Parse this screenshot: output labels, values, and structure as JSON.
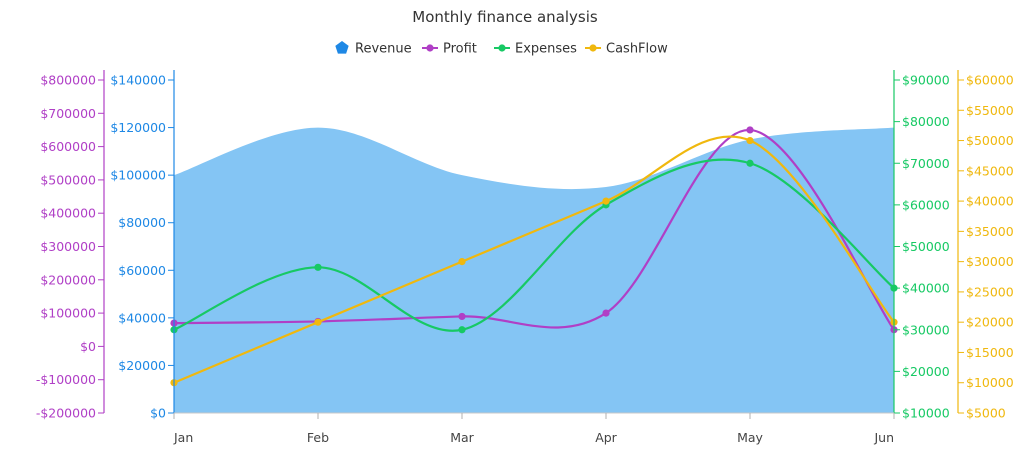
{
  "chart_data": {
    "type": "line",
    "title": "Monthly finance analysis",
    "categories": [
      "Jan",
      "Feb",
      "Mar",
      "Apr",
      "May",
      "Jun"
    ],
    "legend_position": "top-center",
    "grid": false,
    "axes": {
      "revenue": {
        "min": 0,
        "max": 140000,
        "step": 20000,
        "prefix": "$",
        "color": "#1e88e5"
      },
      "profit": {
        "min": -200000,
        "max": 800000,
        "step": 100000,
        "prefix": "$",
        "color": "#b03fc6"
      },
      "expenses": {
        "min": 10000,
        "max": 90000,
        "step": 10000,
        "prefix": "$",
        "color": "#17c964"
      },
      "cashflow": {
        "min": 5000,
        "max": 60000,
        "step": 5000,
        "prefix": "$",
        "color": "#f0b80e"
      }
    },
    "series": [
      {
        "name": "Revenue",
        "type": "area",
        "axis": "revenue",
        "color": "#84c5f4",
        "values": [
          100000,
          120000,
          100000,
          95000,
          115000,
          120000
        ]
      },
      {
        "name": "Profit",
        "type": "line",
        "axis": "profit",
        "color": "#b03fc6",
        "values": [
          70000,
          75000,
          90000,
          100000,
          650000,
          50000
        ]
      },
      {
        "name": "Expenses",
        "type": "line",
        "axis": "expenses",
        "color": "#17c964",
        "values": [
          30000,
          45000,
          30000,
          60000,
          70000,
          40000
        ]
      },
      {
        "name": "CashFlow",
        "type": "line",
        "axis": "cashflow",
        "color": "#f0b80e",
        "values": [
          10000,
          20000,
          30000,
          40000,
          50000,
          20000
        ]
      }
    ]
  }
}
